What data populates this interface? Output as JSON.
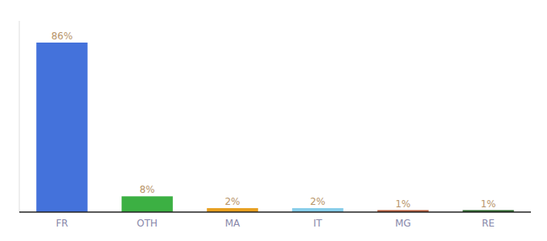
{
  "chart_data": {
    "type": "bar",
    "categories": [
      "FR",
      "OTH",
      "MA",
      "IT",
      "MG",
      "RE"
    ],
    "values": [
      86,
      8,
      2,
      2,
      1,
      1
    ],
    "value_labels": [
      "86%",
      "8%",
      "2%",
      "2%",
      "1%",
      "1%"
    ],
    "colors": [
      "#4472db",
      "#3cb043",
      "#e8a020",
      "#87ceeb",
      "#b85c3a",
      "#2d6a2d"
    ],
    "ylim": [
      0,
      97
    ],
    "grid": false,
    "data_labels": true,
    "tick_labels": "x"
  }
}
